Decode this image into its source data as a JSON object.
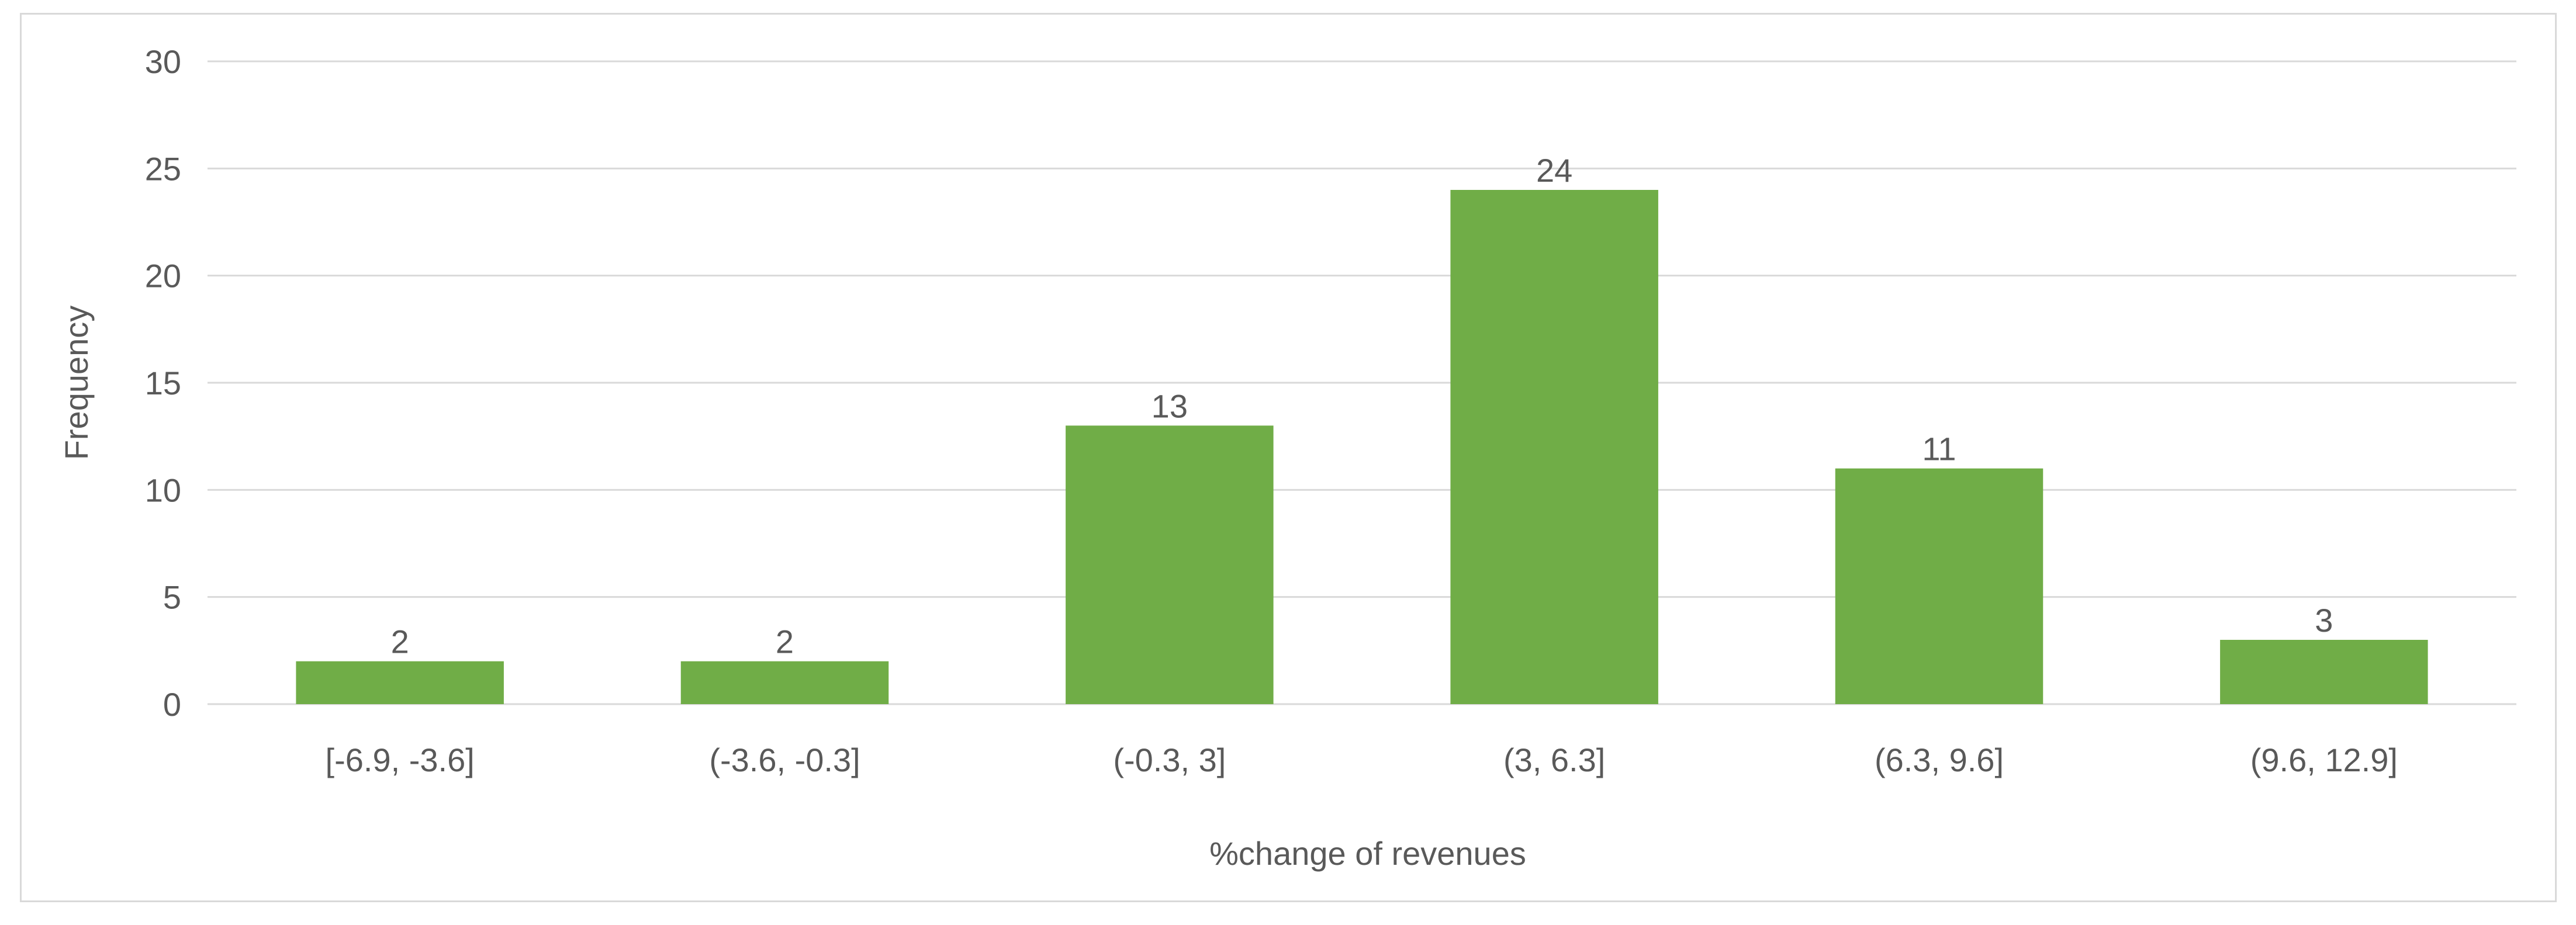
{
  "chart_data": {
    "type": "bar",
    "title": "",
    "xlabel": "%change of revenues",
    "ylabel": "Frequency",
    "categories": [
      "[-6.9, -3.6]",
      "(-3.6, -0.3]",
      "(-0.3, 3]",
      "(3, 6.3]",
      "(6.3, 9.6]",
      "(9.6, 12.9]"
    ],
    "values": [
      2,
      2,
      13,
      24,
      11,
      3
    ],
    "data_labels": [
      "2",
      "2",
      "13",
      "24",
      "11",
      "3"
    ],
    "ylim": [
      0,
      30
    ],
    "yticks": [
      0,
      5,
      10,
      15,
      20,
      25,
      30
    ],
    "grid": true,
    "legend": "none",
    "colors": {
      "bar": "#70ad47",
      "grid": "#d9d9d9",
      "text": "#595959",
      "frame": "#d9d9d9"
    }
  }
}
